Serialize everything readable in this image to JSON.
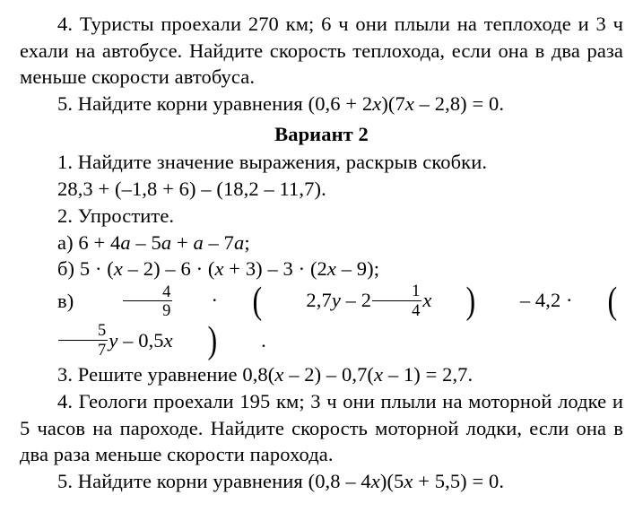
{
  "p4": "4. Туристы проехали 270 км; 6 ч они плыли на теп­лоходе и 3 ч ехали на автобусе. Найдите скорость теп­лохода, если она в два раза меньше скорости автобуса.",
  "p5a": "5. Найдите корни уравнения (0,6 + 2",
  "p5b": ")(7",
  "p5c": " – 2,8) = 0.",
  "variant": "Вариант 2",
  "q1a": "1. Найдите значение выражения, раскрыв скобки.",
  "q1b": "28,3 + (–1,8 + 6) – (18,2 – 11,7).",
  "q2": "2. Упростите.",
  "q2a_pre": "а) 6 + 4",
  "q2a_m1": " – 5",
  "q2a_m2": " + ",
  "q2a_m3": " – 7",
  "q2a_end": ";",
  "q2b_pre": "б) 5 · (",
  "q2b_m1": " – 2) – 6 · (",
  "q2b_m2": " + 3) – 3 · (2",
  "q2b_end": " – 9);",
  "q2c_pre": "в) ",
  "q2c_a": "2,7",
  "q2c_b": " – 2",
  "q2c_c": " – 4,2 · ",
  "q2c_d": " – 0,5",
  "q2c_end": ".",
  "frac": {
    "f49n": "4",
    "f49d": "9",
    "f14n": "1",
    "f14d": "4",
    "f57n": "5",
    "f57d": "7"
  },
  "q3a": "3. Решите уравнение 0,8(",
  "q3b": " – 2) – 0,7(",
  "q3c": " – 1) = 2,7.",
  "q4": "4. Геологи проехали 195 км; 3 ч они плыли на мо­торной лодке и 5 часов на пароходе. Найдите скорость моторной лодки, если она в два раза меньше скорости парохода.",
  "q5a": "5. Найдите корни уравнения (0,8 – 4",
  "q5b": ")(5",
  "q5c": " + 5,5) = 0.",
  "vars": {
    "x": "x",
    "y": "y",
    "a": "a"
  }
}
